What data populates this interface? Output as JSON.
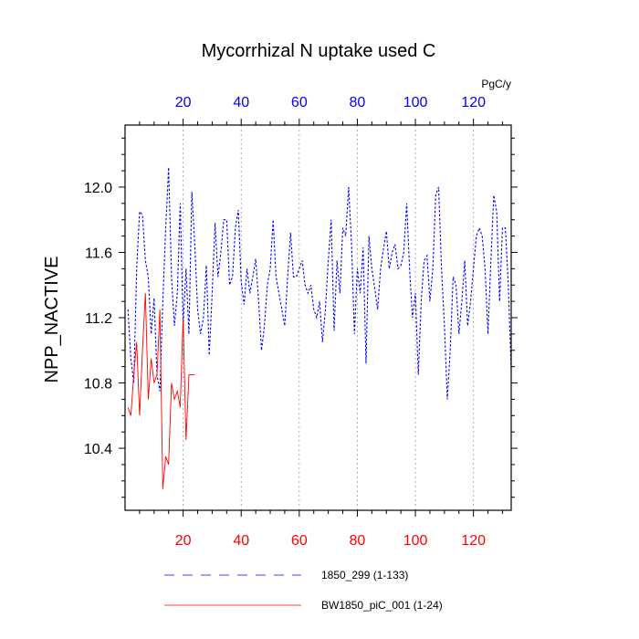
{
  "chart_data": {
    "type": "line",
    "title": "Mycorrhizal N uptake used C",
    "ylabel": "NPP_NACTIVE",
    "top_axis_units": "PgC/y",
    "xlim": [
      0,
      133
    ],
    "ylim": [
      10.02,
      12.38
    ],
    "x_ticks": [
      20,
      40,
      60,
      80,
      100,
      120
    ],
    "y_ticks": [
      10.4,
      10.8,
      11.2,
      11.6,
      12.0
    ],
    "y_tick_labels": [
      "10.4",
      "10.8",
      "11.2",
      "11.6",
      "12.0"
    ],
    "top_tick_color": "#0000ff",
    "bottom_tick_color": "#ff0000",
    "grid_color": "#9a9a9a",
    "series": [
      {
        "name": "1850_299 (1-133)",
        "color": "#0000ff",
        "style": "dashed",
        "x_start": 1,
        "values": [
          11.25,
          10.95,
          10.8,
          11.5,
          11.85,
          11.83,
          11.55,
          11.45,
          11.1,
          11.32,
          10.85,
          10.75,
          11.3,
          11.75,
          12.12,
          11.45,
          11.15,
          11.35,
          11.9,
          11.15,
          11.5,
          11.1,
          11.97,
          11.65,
          11.25,
          11.1,
          11.2,
          11.52,
          10.97,
          11.35,
          11.78,
          11.45,
          11.6,
          11.8,
          11.8,
          11.4,
          11.45,
          11.75,
          11.86,
          11.42,
          11.28,
          11.5,
          11.35,
          11.45,
          11.56,
          11.3,
          11.0,
          11.15,
          11.4,
          11.5,
          11.8,
          11.45,
          11.35,
          11.25,
          11.15,
          11.45,
          11.72,
          11.45,
          11.45,
          11.5,
          11.55,
          11.4,
          11.35,
          11.4,
          11.25,
          11.2,
          11.3,
          11.05,
          11.25,
          11.55,
          11.8,
          11.12,
          11.55,
          11.35,
          11.75,
          11.7,
          12.0,
          11.65,
          11.1,
          11.5,
          11.35,
          11.63,
          10.92,
          11.7,
          11.5,
          11.38,
          11.25,
          11.5,
          11.62,
          11.73,
          11.5,
          11.6,
          11.65,
          11.5,
          11.52,
          11.6,
          11.9,
          11.5,
          11.2,
          11.35,
          10.85,
          11.3,
          11.55,
          11.58,
          11.3,
          11.5,
          11.95,
          12.0,
          11.5,
          11.15,
          10.7,
          11.0,
          11.45,
          11.4,
          11.1,
          11.3,
          11.55,
          11.15,
          11.3,
          11.5,
          11.7,
          11.75,
          11.7,
          11.5,
          11.1,
          11.55,
          11.95,
          11.85,
          11.3,
          11.75,
          11.75,
          11.4,
          10.88
        ]
      },
      {
        "name": "BW1850_piC_001 (1-24)",
        "color": "#ff0000",
        "style": "solid",
        "x_start": 1,
        "values": [
          10.65,
          10.6,
          10.85,
          11.05,
          10.6,
          11.0,
          11.35,
          10.7,
          10.95,
          10.8,
          10.85,
          11.25,
          10.15,
          10.35,
          10.3,
          10.8,
          10.7,
          10.75,
          10.65,
          11.2,
          10.45,
          10.85,
          10.85,
          10.85
        ]
      }
    ],
    "legend_position": "bottom"
  }
}
